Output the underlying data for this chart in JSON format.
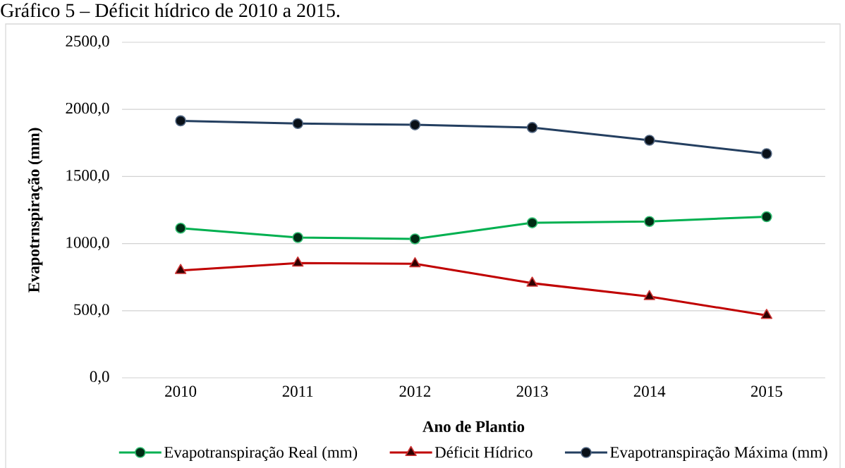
{
  "chart_data": {
    "type": "line",
    "title": "Gráfico 5 – Déficit hídrico de 2010 a 2015.",
    "xlabel": "Ano de Plantio",
    "ylabel": "Evapotrnspiração (mm)",
    "categories": [
      "2010",
      "2011",
      "2012",
      "2013",
      "2014",
      "2015"
    ],
    "series": [
      {
        "name": "Evapotranspiração Real (mm)",
        "color": "#00b050",
        "marker": "circle",
        "values": [
          1115,
          1045,
          1035,
          1155,
          1165,
          1200
        ]
      },
      {
        "name": "Déficit Hídrico",
        "color": "#c00000",
        "marker": "triangle",
        "values": [
          800,
          855,
          850,
          705,
          605,
          465
        ]
      },
      {
        "name": "Evapotranspiração Máxima (mm)",
        "color": "#243f60",
        "marker": "circle",
        "values": [
          1915,
          1895,
          1885,
          1865,
          1770,
          1670
        ]
      }
    ],
    "ylim": [
      0,
      2500
    ],
    "yticks": [
      {
        "value": 0,
        "label": "0,0"
      },
      {
        "value": 500,
        "label": "500,0"
      },
      {
        "value": 1000,
        "label": "1000,0"
      },
      {
        "value": 1500,
        "label": "1500,0"
      },
      {
        "value": 2000,
        "label": "2000,0"
      },
      {
        "value": 2500,
        "label": "2500,0"
      }
    ],
    "grid": "y",
    "legend": "bottom",
    "line_style": "solid"
  }
}
